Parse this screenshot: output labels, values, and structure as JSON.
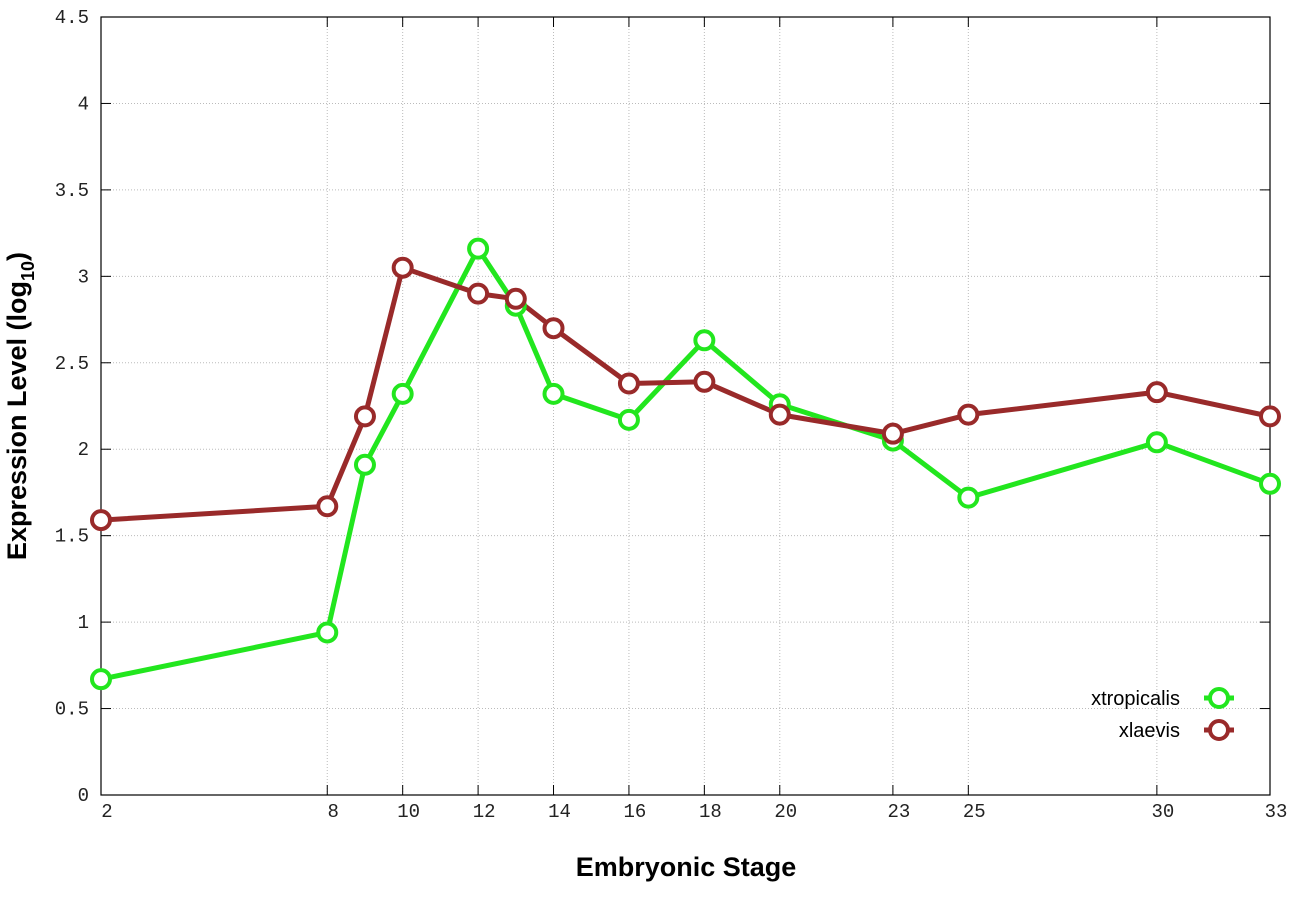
{
  "chart_data": {
    "type": "line",
    "xlabel": "Embryonic Stage",
    "ylabel": [
      "Expression Level (log",
      "10",
      ")"
    ],
    "x": [
      2,
      8,
      9,
      10,
      12,
      13,
      14,
      16,
      18,
      20,
      23,
      25,
      30,
      33
    ],
    "series": [
      {
        "name": "xtropicalis",
        "color": "#22e61e",
        "values": [
          0.67,
          0.94,
          1.91,
          2.32,
          3.16,
          2.83,
          2.32,
          2.17,
          2.63,
          2.26,
          2.05,
          1.72,
          2.04,
          1.8
        ]
      },
      {
        "name": "xlaevis",
        "color": "#992a2a",
        "values": [
          1.59,
          1.67,
          2.19,
          3.05,
          2.9,
          2.87,
          2.7,
          2.38,
          2.39,
          2.2,
          2.09,
          2.2,
          2.33,
          2.19
        ]
      }
    ],
    "xlim": [
      2,
      33
    ],
    "xticks": [
      2,
      8,
      10,
      12,
      14,
      16,
      18,
      20,
      23,
      25,
      30,
      33
    ],
    "ylim": [
      0,
      4.5
    ],
    "yticks": [
      0,
      0.5,
      1,
      1.5,
      2,
      2.5,
      3,
      3.5,
      4,
      4.5
    ],
    "grid": true,
    "legend": "lower right"
  }
}
